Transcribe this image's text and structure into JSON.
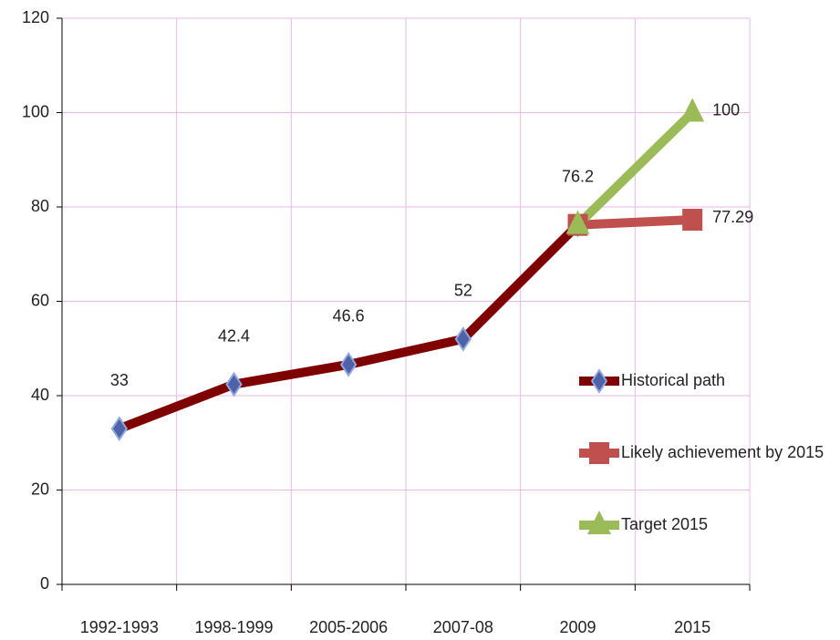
{
  "chart_data": {
    "type": "line",
    "categories": [
      "1992-1993",
      "1998-1999",
      "2005-2006",
      "2007-08",
      "2009",
      "2015"
    ],
    "series": [
      {
        "name": "Historical path",
        "color": "#7f0000",
        "marker": "diamond",
        "values": [
          33,
          42.4,
          46.6,
          52,
          76.2,
          null
        ]
      },
      {
        "name": "Likely achievement by 2015",
        "color": "#c0504d",
        "marker": "square",
        "values": [
          null,
          null,
          null,
          null,
          76.2,
          77.29
        ]
      },
      {
        "name": "Target 2015",
        "color": "#9bbb59",
        "marker": "triangle",
        "values": [
          null,
          null,
          null,
          null,
          76.2,
          100
        ]
      }
    ],
    "ylim": [
      0,
      120
    ],
    "yticks": [
      0,
      20,
      40,
      60,
      80,
      100,
      120
    ],
    "grid": true,
    "legend": "right"
  }
}
